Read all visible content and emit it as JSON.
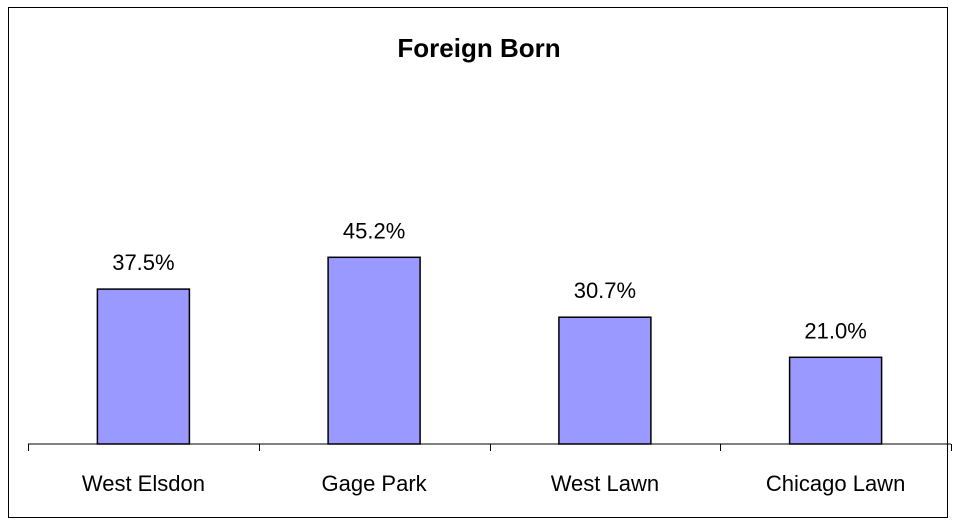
{
  "chart_data": {
    "type": "bar",
    "title": "Foreign Born",
    "xlabel": "",
    "ylabel": "",
    "categories": [
      "West Elsdon",
      "Gage Park",
      "West Lawn",
      "Chicago Lawn"
    ],
    "values": [
      37.5,
      45.2,
      30.7,
      21.0
    ],
    "data_labels": [
      "37.5%",
      "45.2%",
      "30.7%",
      "21.0%"
    ],
    "unit": "%",
    "ylim": [
      0,
      100
    ],
    "grid": false,
    "legend": "none",
    "bar_color": "#9999ff",
    "bar_border_color": "#000000"
  }
}
